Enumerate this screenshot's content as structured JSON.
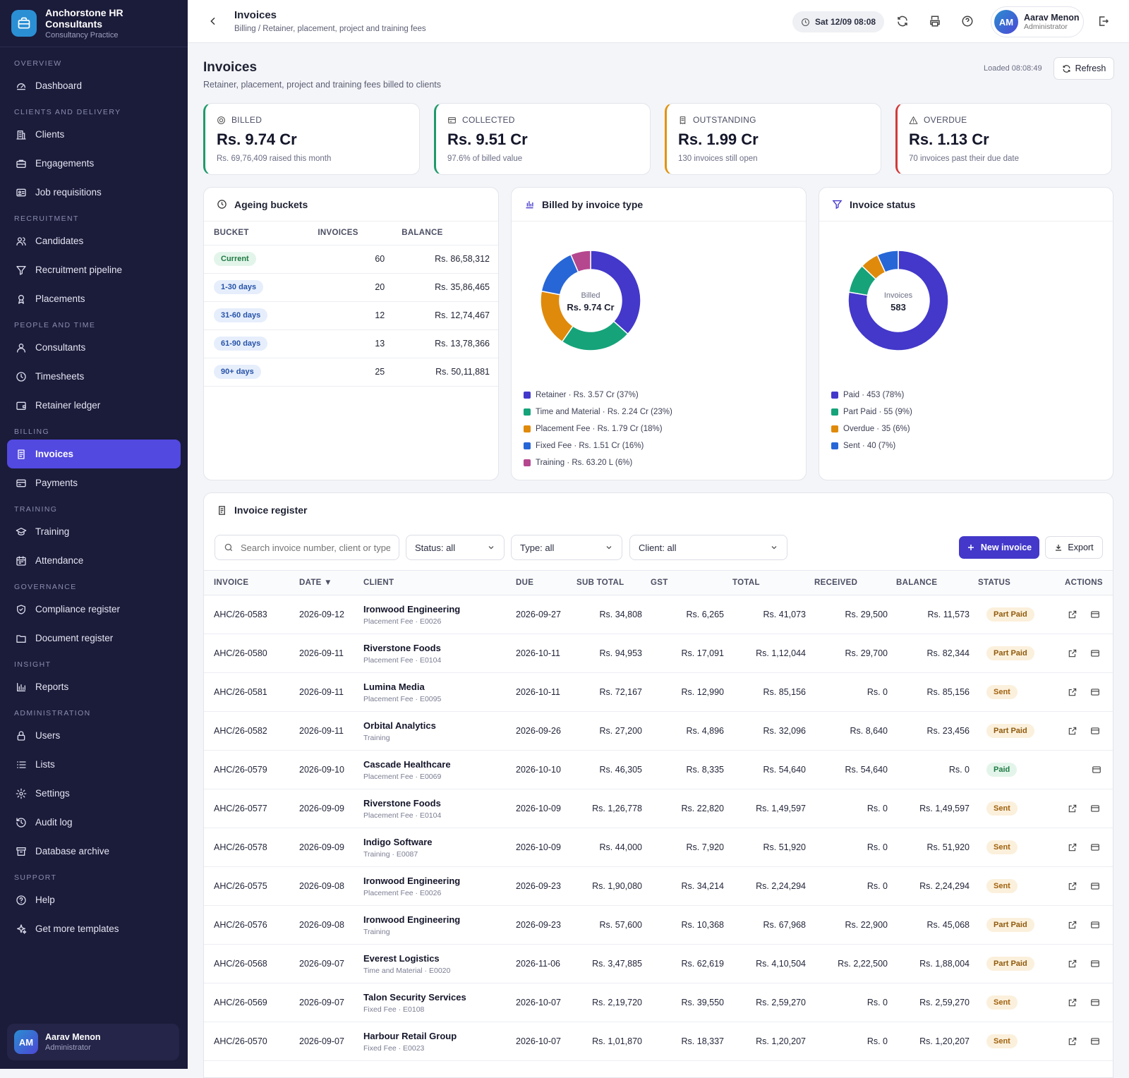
{
  "brand": {
    "name": "Anchorstone HR Consultants",
    "subtitle": "Consultancy Practice"
  },
  "nav": [
    {
      "section": "OVERVIEW",
      "items": [
        {
          "label": "Dashboard",
          "icon": "dashboard-icon"
        }
      ]
    },
    {
      "section": "CLIENTS AND DELIVERY",
      "items": [
        {
          "label": "Clients",
          "icon": "building-icon"
        },
        {
          "label": "Engagements",
          "icon": "briefcase-icon"
        },
        {
          "label": "Job requisitions",
          "icon": "id-card-icon"
        }
      ]
    },
    {
      "section": "RECRUITMENT",
      "items": [
        {
          "label": "Candidates",
          "icon": "users-icon"
        },
        {
          "label": "Recruitment pipeline",
          "icon": "filter-icon"
        },
        {
          "label": "Placements",
          "icon": "award-icon"
        }
      ]
    },
    {
      "section": "PEOPLE AND TIME",
      "items": [
        {
          "label": "Consultants",
          "icon": "user-icon"
        },
        {
          "label": "Timesheets",
          "icon": "clock-icon"
        },
        {
          "label": "Retainer ledger",
          "icon": "wallet-icon"
        }
      ]
    },
    {
      "section": "BILLING",
      "items": [
        {
          "label": "Invoices",
          "icon": "invoice-icon",
          "active": true
        },
        {
          "label": "Payments",
          "icon": "card-icon"
        }
      ]
    },
    {
      "section": "TRAINING",
      "items": [
        {
          "label": "Training",
          "icon": "graduation-cap-icon"
        },
        {
          "label": "Attendance",
          "icon": "calendar-icon"
        }
      ]
    },
    {
      "section": "GOVERNANCE",
      "items": [
        {
          "label": "Compliance register",
          "icon": "shield-icon"
        },
        {
          "label": "Document register",
          "icon": "folder-icon"
        }
      ]
    },
    {
      "section": "INSIGHT",
      "items": [
        {
          "label": "Reports",
          "icon": "bar-chart-icon"
        }
      ]
    },
    {
      "section": "ADMINISTRATION",
      "items": [
        {
          "label": "Users",
          "icon": "lock-icon"
        },
        {
          "label": "Lists",
          "icon": "list-icon"
        },
        {
          "label": "Settings",
          "icon": "gear-icon"
        },
        {
          "label": "Audit log",
          "icon": "history-icon"
        },
        {
          "label": "Database archive",
          "icon": "archive-icon"
        }
      ]
    },
    {
      "section": "SUPPORT",
      "items": [
        {
          "label": "Help",
          "icon": "help-icon"
        },
        {
          "label": "Get more templates",
          "icon": "sparkle-icon"
        }
      ]
    }
  ],
  "user": {
    "initials": "AM",
    "name": "Aarav Menon",
    "role": "Administrator"
  },
  "topbar": {
    "title": "Invoices",
    "breadcrumb": "Billing / Retainer, placement, project and training fees",
    "datetime": "Sat 12/09 08:08"
  },
  "page": {
    "title": "Invoices",
    "subtitle": "Retainer, placement, project and training fees billed to clients",
    "loaded": "Loaded 08:08:49",
    "refresh_label": "Refresh"
  },
  "kpis": [
    {
      "label": "BILLED",
      "value": "Rs. 9.74 Cr",
      "sub": "Rs. 69,76,409 raised this month",
      "color": "#1f9b6b",
      "icon": "coin-icon"
    },
    {
      "label": "COLLECTED",
      "value": "Rs. 9.51 Cr",
      "sub": "97.6% of billed value",
      "color": "#1f9b6b",
      "icon": "card-icon"
    },
    {
      "label": "OUTSTANDING",
      "value": "Rs. 1.99 Cr",
      "sub": "130 invoices still open",
      "color": "#e0930f",
      "icon": "receipt-icon"
    },
    {
      "label": "OVERDUE",
      "value": "Rs. 1.13 Cr",
      "sub": "70 invoices past their due date",
      "color": "#d23a3a",
      "icon": "warning-icon"
    }
  ],
  "ageing": {
    "title": "Ageing buckets",
    "headers": [
      "BUCKET",
      "INVOICES",
      "BALANCE"
    ],
    "rows": [
      {
        "bucket": "Current",
        "invoices": "60",
        "balance": "Rs. 86,58,312",
        "tone": "green"
      },
      {
        "bucket": "1-30 days",
        "invoices": "20",
        "balance": "Rs. 35,86,465",
        "tone": "blue"
      },
      {
        "bucket": "31-60 days",
        "invoices": "12",
        "balance": "Rs. 12,74,467",
        "tone": "blue"
      },
      {
        "bucket": "61-90 days",
        "invoices": "13",
        "balance": "Rs. 13,78,366",
        "tone": "blue"
      },
      {
        "bucket": "90+ days",
        "invoices": "25",
        "balance": "Rs. 50,11,881",
        "tone": "blue"
      }
    ]
  },
  "chart_data": [
    {
      "type": "pie",
      "title": "Billed by invoice type",
      "center_label": "Billed",
      "center_value": "Rs. 9.74 Cr",
      "categories": [
        "Retainer",
        "Time and Material",
        "Placement Fee",
        "Fixed Fee",
        "Training"
      ],
      "values": [
        3.57,
        2.24,
        1.79,
        1.51,
        0.632
      ],
      "percent": [
        37,
        23,
        18,
        16,
        6
      ],
      "legend": [
        "Retainer · Rs. 3.57 Cr (37%)",
        "Time and Material · Rs. 2.24 Cr (23%)",
        "Placement Fee · Rs. 1.79 Cr (18%)",
        "Fixed Fee · Rs. 1.51 Cr (16%)",
        "Training · Rs. 63.20 L (6%)"
      ],
      "colors": [
        "#4338ca",
        "#16a37a",
        "#e08a0b",
        "#2766d6",
        "#b5478f"
      ]
    },
    {
      "type": "pie",
      "title": "Invoice status",
      "center_label": "Invoices",
      "center_value": "583",
      "categories": [
        "Paid",
        "Part Paid",
        "Overdue",
        "Sent"
      ],
      "values": [
        453,
        55,
        35,
        40
      ],
      "percent": [
        78,
        9,
        6,
        7
      ],
      "legend": [
        "Paid · 453 (78%)",
        "Part Paid · 55 (9%)",
        "Overdue · 35 (6%)",
        "Sent · 40 (7%)"
      ],
      "colors": [
        "#4338ca",
        "#16a37a",
        "#e08a0b",
        "#2766d6"
      ]
    }
  ],
  "register": {
    "title": "Invoice register",
    "search_placeholder": "Search invoice number, client or type",
    "filters": {
      "status": "Status: all",
      "type": "Type: all",
      "client": "Client: all"
    },
    "new_label": "New invoice",
    "export_label": "Export",
    "headers": [
      "INVOICE",
      "DATE ▼",
      "CLIENT",
      "DUE",
      "SUB TOTAL",
      "GST",
      "TOTAL",
      "RECEIVED",
      "BALANCE",
      "STATUS",
      "ACTIONS"
    ],
    "rows": [
      {
        "invoice": "AHC/26-0583",
        "date": "2026-09-12",
        "client": "Ironwood Engineering",
        "client_sub": "Placement Fee · E0026",
        "due": "2026-09-27",
        "sub_total": "Rs. 34,808",
        "gst": "Rs. 6,265",
        "total": "Rs. 41,073",
        "received": "Rs. 29,500",
        "balance": "Rs. 11,573",
        "status": "Part Paid"
      },
      {
        "invoice": "AHC/26-0580",
        "date": "2026-09-11",
        "client": "Riverstone Foods",
        "client_sub": "Placement Fee · E0104",
        "due": "2026-10-11",
        "sub_total": "Rs. 94,953",
        "gst": "Rs. 17,091",
        "total": "Rs. 1,12,044",
        "received": "Rs. 29,700",
        "balance": "Rs. 82,344",
        "status": "Part Paid"
      },
      {
        "invoice": "AHC/26-0581",
        "date": "2026-09-11",
        "client": "Lumina Media",
        "client_sub": "Placement Fee · E0095",
        "due": "2026-10-11",
        "sub_total": "Rs. 72,167",
        "gst": "Rs. 12,990",
        "total": "Rs. 85,156",
        "received": "Rs. 0",
        "balance": "Rs. 85,156",
        "status": "Sent"
      },
      {
        "invoice": "AHC/26-0582",
        "date": "2026-09-11",
        "client": "Orbital Analytics",
        "client_sub": "Training",
        "due": "2026-09-26",
        "sub_total": "Rs. 27,200",
        "gst": "Rs. 4,896",
        "total": "Rs. 32,096",
        "received": "Rs. 8,640",
        "balance": "Rs. 23,456",
        "status": "Part Paid"
      },
      {
        "invoice": "AHC/26-0579",
        "date": "2026-09-10",
        "client": "Cascade Healthcare",
        "client_sub": "Placement Fee · E0069",
        "due": "2026-10-10",
        "sub_total": "Rs. 46,305",
        "gst": "Rs. 8,335",
        "total": "Rs. 54,640",
        "received": "Rs. 54,640",
        "balance": "Rs. 0",
        "status": "Paid"
      },
      {
        "invoice": "AHC/26-0577",
        "date": "2026-09-09",
        "client": "Riverstone Foods",
        "client_sub": "Placement Fee · E0104",
        "due": "2026-10-09",
        "sub_total": "Rs. 1,26,778",
        "gst": "Rs. 22,820",
        "total": "Rs. 1,49,597",
        "received": "Rs. 0",
        "balance": "Rs. 1,49,597",
        "status": "Sent"
      },
      {
        "invoice": "AHC/26-0578",
        "date": "2026-09-09",
        "client": "Indigo Software",
        "client_sub": "Training · E0087",
        "due": "2026-10-09",
        "sub_total": "Rs. 44,000",
        "gst": "Rs. 7,920",
        "total": "Rs. 51,920",
        "received": "Rs. 0",
        "balance": "Rs. 51,920",
        "status": "Sent"
      },
      {
        "invoice": "AHC/26-0575",
        "date": "2026-09-08",
        "client": "Ironwood Engineering",
        "client_sub": "Placement Fee · E0026",
        "due": "2026-09-23",
        "sub_total": "Rs. 1,90,080",
        "gst": "Rs. 34,214",
        "total": "Rs. 2,24,294",
        "received": "Rs. 0",
        "balance": "Rs. 2,24,294",
        "status": "Sent"
      },
      {
        "invoice": "AHC/26-0576",
        "date": "2026-09-08",
        "client": "Ironwood Engineering",
        "client_sub": "Training",
        "due": "2026-09-23",
        "sub_total": "Rs. 57,600",
        "gst": "Rs. 10,368",
        "total": "Rs. 67,968",
        "received": "Rs. 22,900",
        "balance": "Rs. 45,068",
        "status": "Part Paid"
      },
      {
        "invoice": "AHC/26-0568",
        "date": "2026-09-07",
        "client": "Everest Logistics",
        "client_sub": "Time and Material · E0020",
        "due": "2026-11-06",
        "sub_total": "Rs. 3,47,885",
        "gst": "Rs. 62,619",
        "total": "Rs. 4,10,504",
        "received": "Rs. 2,22,500",
        "balance": "Rs. 1,88,004",
        "status": "Part Paid"
      },
      {
        "invoice": "AHC/26-0569",
        "date": "2026-09-07",
        "client": "Talon Security Services",
        "client_sub": "Fixed Fee · E0108",
        "due": "2026-10-07",
        "sub_total": "Rs. 2,19,720",
        "gst": "Rs. 39,550",
        "total": "Rs. 2,59,270",
        "received": "Rs. 0",
        "balance": "Rs. 2,59,270",
        "status": "Sent"
      },
      {
        "invoice": "AHC/26-0570",
        "date": "2026-09-07",
        "client": "Harbour Retail Group",
        "client_sub": "Fixed Fee · E0023",
        "due": "2026-10-07",
        "sub_total": "Rs. 1,01,870",
        "gst": "Rs. 18,337",
        "total": "Rs. 1,20,207",
        "received": "Rs. 0",
        "balance": "Rs. 1,20,207",
        "status": "Sent"
      }
    ]
  }
}
